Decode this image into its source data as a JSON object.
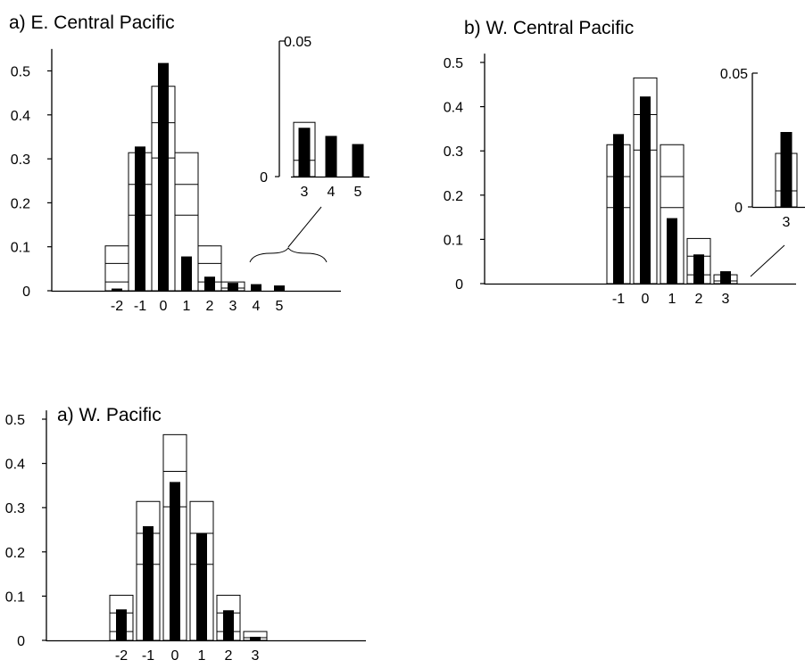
{
  "chart_data": [
    {
      "type": "bar",
      "title": "a)  E. Central Pacific",
      "categories": [
        "-2",
        "-1",
        "0",
        "1",
        "2",
        "3",
        "4",
        "5"
      ],
      "yticks": [
        "0",
        "0.1",
        "0.2",
        "0.3",
        "0.4",
        "0.5"
      ],
      "ylim": [
        0,
        0.55
      ],
      "series": [
        {
          "values": [
            0.005,
            0.328,
            0.518,
            0.078,
            0.032,
            0.018,
            0.015,
            0.012
          ]
        }
      ],
      "reference_bars": [
        {
          "category": "-2",
          "levels": [
            0.102,
            0.062,
            0.02
          ]
        },
        {
          "category": "-1",
          "levels": [
            0.314,
            0.242,
            0.172
          ]
        },
        {
          "category": "0",
          "levels": [
            0.465,
            0.382,
            0.302
          ]
        },
        {
          "category": "1",
          "levels": [
            0.314,
            0.242,
            0.172
          ]
        },
        {
          "category": "2",
          "levels": [
            0.102,
            0.062,
            0.02
          ]
        },
        {
          "category": "3",
          "levels": [
            0.02,
            0.006
          ]
        }
      ],
      "inset": {
        "categories": [
          "3",
          "4",
          "5"
        ],
        "ylim": [
          0,
          0.05
        ],
        "yticks": [
          "0",
          "0.05"
        ],
        "values": [
          0.018,
          0.015,
          0.012
        ],
        "reference_bars": [
          {
            "category": "3",
            "levels": [
              0.02,
              0.006
            ]
          }
        ]
      }
    },
    {
      "type": "bar",
      "title": "b)  W. Central Pacific",
      "categories": [
        "-1",
        "0",
        "1",
        "2",
        "3"
      ],
      "yticks": [
        "0",
        "0.1",
        "0.2",
        "0.3",
        "0.4",
        "0.5"
      ],
      "ylim": [
        0,
        0.52
      ],
      "series": [
        {
          "values": [
            0.338,
            0.423,
            0.148,
            0.066,
            0.028
          ]
        }
      ],
      "reference_bars": [
        {
          "category": "-1",
          "levels": [
            0.314,
            0.242,
            0.172
          ]
        },
        {
          "category": "0",
          "levels": [
            0.465,
            0.382,
            0.302
          ]
        },
        {
          "category": "1",
          "levels": [
            0.314,
            0.242,
            0.172
          ]
        },
        {
          "category": "2",
          "levels": [
            0.102,
            0.062,
            0.02
          ]
        },
        {
          "category": "3",
          "levels": [
            0.02,
            0.006
          ]
        }
      ],
      "inset": {
        "categories": [
          "3"
        ],
        "ylim": [
          0,
          0.05
        ],
        "yticks": [
          "0",
          "0.05"
        ],
        "values": [
          0.028
        ],
        "reference_bars": [
          {
            "category": "3",
            "levels": [
              0.02,
              0.006
            ]
          }
        ]
      }
    },
    {
      "type": "bar",
      "title": "a) W. Pacific",
      "categories": [
        "-2",
        "-1",
        "0",
        "1",
        "2",
        "3"
      ],
      "yticks": [
        "0",
        "0.1",
        "0.2",
        "0.3",
        "0.4",
        "0.5"
      ],
      "ylim": [
        0,
        0.52
      ],
      "series": [
        {
          "values": [
            0.07,
            0.258,
            0.358,
            0.242,
            0.068,
            0.008
          ]
        }
      ],
      "reference_bars": [
        {
          "category": "-2",
          "levels": [
            0.102,
            0.062,
            0.02
          ]
        },
        {
          "category": "-1",
          "levels": [
            0.314,
            0.242,
            0.172
          ]
        },
        {
          "category": "0",
          "levels": [
            0.465,
            0.382,
            0.302
          ]
        },
        {
          "category": "1",
          "levels": [
            0.314,
            0.242,
            0.172
          ]
        },
        {
          "category": "2",
          "levels": [
            0.102,
            0.062,
            0.02
          ]
        },
        {
          "category": "3",
          "levels": [
            0.02,
            0.006
          ]
        }
      ]
    }
  ]
}
